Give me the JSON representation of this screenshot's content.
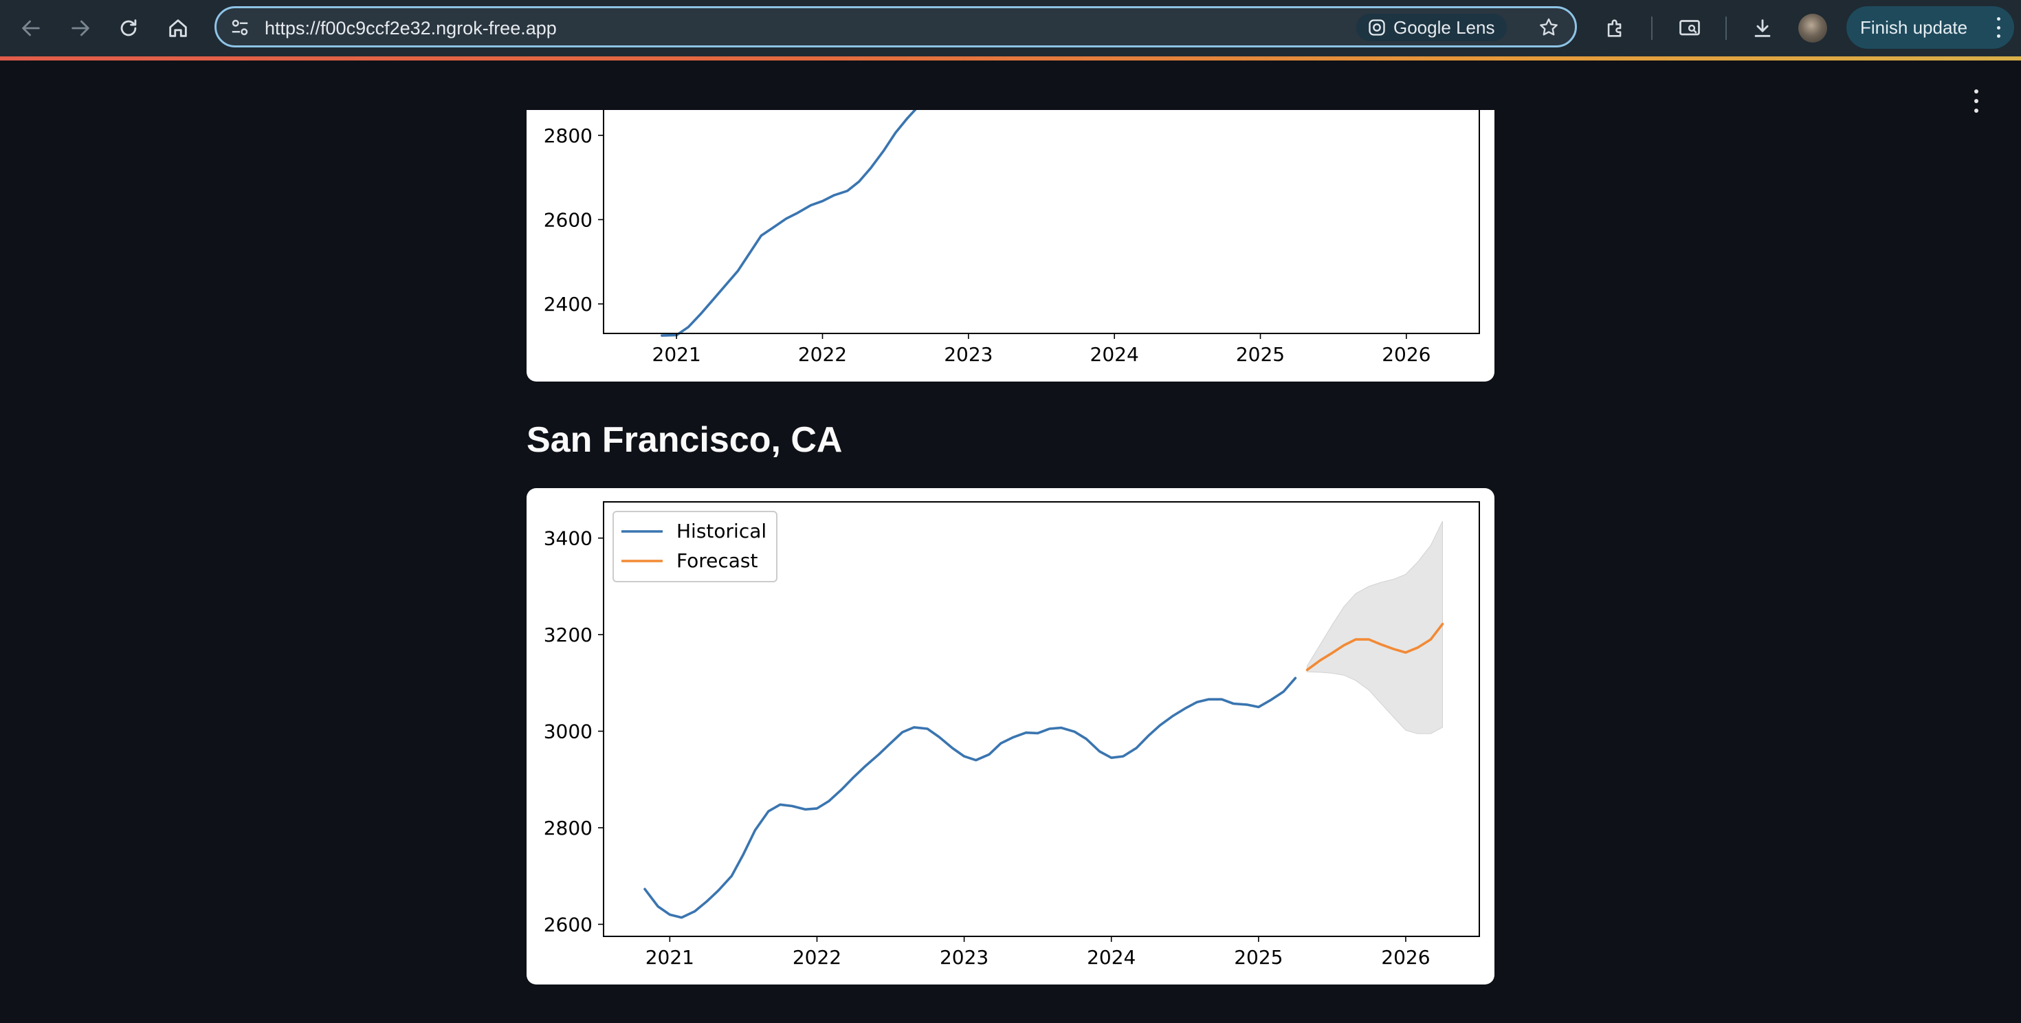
{
  "browser": {
    "url": "https://f00c9ccf2e32.ngrok-free.app",
    "lens_label": "Google Lens",
    "finish_update_label": "Finish update"
  },
  "colors": {
    "historical": "#3a75b0",
    "forecast": "#f28a36",
    "band": "#e6e6e6"
  },
  "sections": [
    {
      "title": ""
    },
    {
      "title": "San Francisco, CA"
    }
  ],
  "chart_data": [
    {
      "type": "line",
      "title": "",
      "xlabel": "",
      "ylabel": "",
      "xlim": [
        2020.5,
        2026.5
      ],
      "ylim_visible": [
        2330,
        2860
      ],
      "x_ticks": [
        2021,
        2022,
        2023,
        2024,
        2025,
        2026
      ],
      "y_ticks": [
        2400,
        2600,
        2800
      ],
      "legend": "none (cropped above)",
      "grid": false,
      "series": [
        {
          "x": [
            2020.9,
            2021.0,
            2021.08,
            2021.17,
            2021.25,
            2021.33,
            2021.42,
            2021.5,
            2021.58,
            2021.67,
            2021.75,
            2021.83,
            2021.92,
            2022.0,
            2022.08,
            2022.17,
            2022.25,
            2022.33,
            2022.42,
            2022.5,
            2022.58,
            2022.66
          ],
          "values": [
            2325,
            2326,
            2345,
            2378,
            2410,
            2442,
            2478,
            2520,
            2562,
            2583,
            2602,
            2616,
            2634,
            2644,
            2658,
            2668,
            2690,
            2722,
            2764,
            2806,
            2840,
            2870
          ]
        }
      ]
    },
    {
      "type": "line",
      "title": "",
      "xlabel": "",
      "ylabel": "",
      "xlim": [
        2020.55,
        2026.5
      ],
      "ylim": [
        2575,
        3475
      ],
      "x_ticks": [
        2021,
        2022,
        2023,
        2024,
        2025,
        2026
      ],
      "y_ticks": [
        2600,
        2800,
        3000,
        3200,
        3400
      ],
      "legend": "top-left",
      "grid": false,
      "series": [
        {
          "name": "Historical",
          "x": [
            2020.83,
            2020.92,
            2021.0,
            2021.08,
            2021.17,
            2021.25,
            2021.33,
            2021.42,
            2021.5,
            2021.58,
            2021.67,
            2021.75,
            2021.83,
            2021.92,
            2022.0,
            2022.08,
            2022.17,
            2022.25,
            2022.33,
            2022.42,
            2022.5,
            2022.58,
            2022.66,
            2022.75,
            2022.83,
            2022.92,
            2023.0,
            2023.08,
            2023.17,
            2023.25,
            2023.33,
            2023.42,
            2023.5,
            2023.58,
            2023.66,
            2023.75,
            2023.83,
            2023.92,
            2024.0,
            2024.08,
            2024.17,
            2024.25,
            2024.33,
            2024.42,
            2024.5,
            2024.58,
            2024.66,
            2024.75,
            2024.83,
            2024.92,
            2025.0,
            2025.08,
            2025.17,
            2025.25
          ],
          "values": [
            2673,
            2637,
            2620,
            2614,
            2627,
            2647,
            2670,
            2700,
            2745,
            2795,
            2834,
            2848,
            2845,
            2838,
            2840,
            2855,
            2880,
            2905,
            2928,
            2952,
            2975,
            2998,
            3008,
            3005,
            2988,
            2965,
            2948,
            2940,
            2952,
            2975,
            2987,
            2997,
            2996,
            3005,
            3007,
            2999,
            2984,
            2958,
            2945,
            2948,
            2965,
            2990,
            3012,
            3032,
            3047,
            3060,
            3066,
            3066,
            3057,
            3055,
            3050,
            3064,
            3082,
            3110
          ]
        },
        {
          "name": "Forecast",
          "x": [
            2025.33,
            2025.42,
            2025.5,
            2025.58,
            2025.66,
            2025.75,
            2025.83,
            2025.92,
            2026.0,
            2026.08,
            2026.17,
            2026.25
          ],
          "values": [
            3127,
            3147,
            3162,
            3178,
            3190,
            3190,
            3180,
            3170,
            3163,
            3173,
            3190,
            3222
          ],
          "lower": [
            3123,
            3122,
            3120,
            3116,
            3105,
            3085,
            3058,
            3028,
            3002,
            2995,
            2995,
            3008
          ],
          "upper": [
            3135,
            3180,
            3220,
            3258,
            3285,
            3300,
            3308,
            3315,
            3325,
            3350,
            3385,
            3435
          ]
        }
      ]
    }
  ]
}
